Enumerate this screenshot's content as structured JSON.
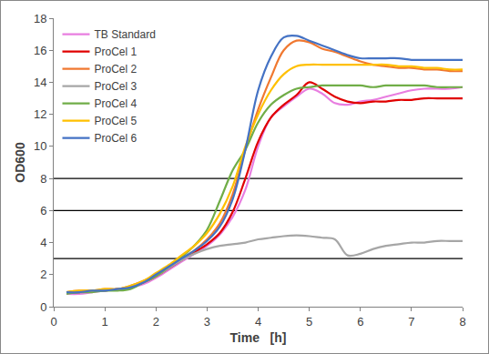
{
  "chart_data": {
    "type": "line",
    "x_label": "Time   [h]",
    "y_label": "OD600",
    "x": [
      0.25,
      0.5,
      0.75,
      1,
      1.25,
      1.5,
      1.75,
      2,
      2.25,
      2.5,
      2.75,
      3,
      3.25,
      3.5,
      3.75,
      4,
      4.25,
      4.5,
      4.75,
      5,
      5.25,
      5.5,
      5.75,
      6,
      6.25,
      6.5,
      6.75,
      7,
      7.25,
      7.5,
      7.75,
      8
    ],
    "series": [
      {
        "name": "TB Standard",
        "color": "#e87ee0",
        "values": [
          0.8,
          0.8,
          0.9,
          1.0,
          1.1,
          1.2,
          1.4,
          1.8,
          2.3,
          2.8,
          3.3,
          3.8,
          4.5,
          5.6,
          7.3,
          10.0,
          11.8,
          12.5,
          13.1,
          13.6,
          13.3,
          12.7,
          12.6,
          12.8,
          12.9,
          13.1,
          13.3,
          13.5,
          13.6,
          13.6,
          13.6,
          13.7
        ]
      },
      {
        "name": "ProCel 1",
        "color": "#e00000",
        "values": [
          0.9,
          0.9,
          1.0,
          1.0,
          1.1,
          1.2,
          1.5,
          1.9,
          2.4,
          2.9,
          3.4,
          3.9,
          4.6,
          5.9,
          8.0,
          10.3,
          11.8,
          12.6,
          13.2,
          14.0,
          13.6,
          13.1,
          12.8,
          12.7,
          12.8,
          12.8,
          12.9,
          12.9,
          13.0,
          13.0,
          13.0,
          13.0
        ]
      },
      {
        "name": "ProCel 2",
        "color": "#f07830",
        "values": [
          0.9,
          1.0,
          1.0,
          1.1,
          1.1,
          1.3,
          1.6,
          2.0,
          2.5,
          3.0,
          3.5,
          4.2,
          5.2,
          7.0,
          9.8,
          12.3,
          14.3,
          16.0,
          16.6,
          16.5,
          16.1,
          15.9,
          15.6,
          15.3,
          15.1,
          15.0,
          14.9,
          14.9,
          14.8,
          14.8,
          14.7,
          14.7
        ]
      },
      {
        "name": "ProCel 3",
        "color": "#a6a6a6",
        "values": [
          0.9,
          0.9,
          1.0,
          1.0,
          1.1,
          1.2,
          1.5,
          1.9,
          2.4,
          2.9,
          3.3,
          3.6,
          3.8,
          3.9,
          4.0,
          4.2,
          4.3,
          4.4,
          4.45,
          4.4,
          4.3,
          4.2,
          3.2,
          3.3,
          3.6,
          3.8,
          3.9,
          4.0,
          4.0,
          4.1,
          4.1,
          4.1
        ]
      },
      {
        "name": "ProCel 4",
        "color": "#70ad47",
        "values": [
          0.8,
          0.9,
          0.9,
          1.0,
          1.0,
          1.1,
          1.5,
          1.9,
          2.5,
          3.1,
          3.8,
          4.8,
          6.6,
          8.5,
          9.8,
          11.5,
          12.6,
          13.2,
          13.6,
          13.7,
          13.8,
          13.8,
          13.8,
          13.8,
          13.7,
          13.8,
          13.8,
          13.8,
          13.8,
          13.7,
          13.7,
          13.7
        ]
      },
      {
        "name": "ProCel 5",
        "color": "#ffc000",
        "values": [
          0.9,
          1.0,
          1.0,
          1.1,
          1.1,
          1.3,
          1.6,
          2.1,
          2.6,
          3.2,
          3.8,
          4.6,
          5.8,
          7.5,
          10.0,
          12.0,
          13.5,
          14.5,
          15.0,
          15.1,
          15.1,
          15.1,
          15.1,
          15.1,
          15.1,
          15.1,
          15.0,
          15.0,
          14.9,
          14.9,
          14.8,
          14.8
        ]
      },
      {
        "name": "ProCel 6",
        "color": "#4472c4",
        "values": [
          0.9,
          0.9,
          1.0,
          1.0,
          1.1,
          1.2,
          1.5,
          2.0,
          2.5,
          3.0,
          3.5,
          4.1,
          5.0,
          6.7,
          9.8,
          13.5,
          15.6,
          16.8,
          16.9,
          16.6,
          16.3,
          16.0,
          15.7,
          15.5,
          15.5,
          15.5,
          15.5,
          15.4,
          15.4,
          15.4,
          15.4,
          15.4
        ]
      }
    ],
    "hlines": [
      3,
      6,
      8
    ],
    "xlim": [
      0,
      8
    ],
    "xticks": [
      0,
      1,
      2,
      3,
      4,
      5,
      6,
      7,
      8
    ],
    "ylim": [
      0,
      18
    ],
    "yticks": [
      0,
      2,
      4,
      6,
      8,
      10,
      12,
      14,
      16,
      18
    ],
    "grid": false,
    "legend": "upper left"
  }
}
